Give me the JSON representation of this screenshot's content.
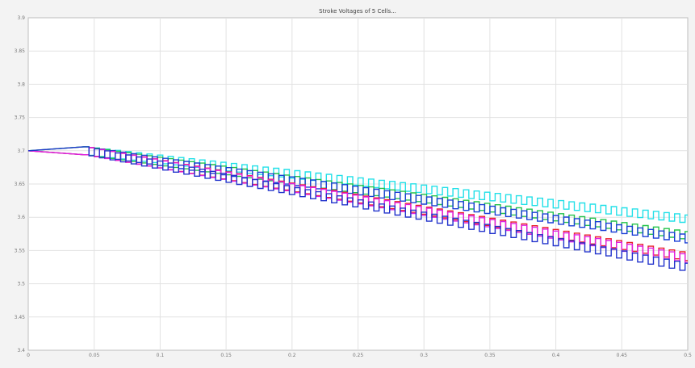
{
  "chart_data": {
    "type": "line",
    "title": "Stroke Voltages of 5 Cells...",
    "xlabel": "",
    "ylabel": "",
    "xlim": [
      0,
      0.5
    ],
    "ylim": [
      3.4,
      3.9
    ],
    "grid": true,
    "x_ticks": [
      "0",
      "0.05",
      "0.1",
      "0.15",
      "0.2",
      "0.25",
      "0.3",
      "0.35",
      "0.4",
      "0.45",
      "0.5"
    ],
    "y_ticks": [
      "3.9",
      "3.85",
      "3.8",
      "3.75",
      "3.7",
      "3.65",
      "3.6",
      "3.55",
      "3.5",
      "3.45",
      "3.4"
    ],
    "waveform": {
      "start_x": 0.042,
      "ripple_amplitude": 0.006,
      "ripple_period": 0.008
    },
    "series": [
      {
        "color": "#22e0e8",
        "x": [
          0,
          0.042,
          0.5
        ],
        "y": [
          3.7,
          3.7,
          3.597
        ]
      },
      {
        "color": "#22c24a",
        "x": [
          0,
          0.042,
          0.5
        ],
        "y": [
          3.7,
          3.7,
          3.572
        ]
      },
      {
        "color": "#1a3fd6",
        "x": [
          0,
          0.042,
          0.5
        ],
        "y": [
          3.7,
          3.7,
          3.567
        ]
      },
      {
        "color": "#e8202a",
        "x": [
          0,
          0.042,
          0.5
        ],
        "y": [
          3.7,
          3.7,
          3.54
        ]
      },
      {
        "color": "#e020e0",
        "x": [
          0,
          0.042,
          0.5
        ],
        "y": [
          3.7,
          3.7,
          3.537
        ]
      },
      {
        "color": "#2233cc",
        "x": [
          0,
          0.042,
          0.5
        ],
        "y": [
          3.7,
          3.7,
          3.524
        ]
      }
    ]
  }
}
